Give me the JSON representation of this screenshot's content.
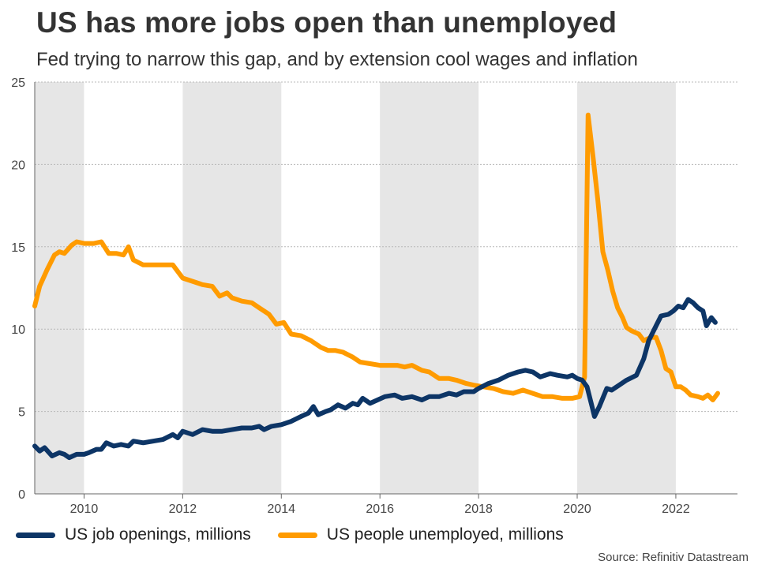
{
  "header": {
    "title": "US has more jobs open than unemployed",
    "subtitle": "Fed trying to narrow this gap, and by extension cool wages and inflation"
  },
  "legend": {
    "openings": "US job openings, millions",
    "unemployed": "US people unemployed, millions"
  },
  "source": "Source: Refinitiv Datastream",
  "colors": {
    "openings": "#0d3566",
    "unemployed": "#ff9b00",
    "shade": "#e6e6e6",
    "grid": "#b8b8b8"
  },
  "chart_data": {
    "type": "line",
    "title": "US has more jobs open than unemployed",
    "xlabel": "",
    "ylabel": "",
    "xlim": [
      2009.0,
      2023.25
    ],
    "ylim": [
      0,
      25
    ],
    "yticks": [
      0,
      5,
      10,
      15,
      20,
      25
    ],
    "xticks": [
      2010,
      2012,
      2014,
      2016,
      2018,
      2020,
      2022
    ],
    "xtick_labels": [
      "2010",
      "2012",
      "2014",
      "2016",
      "2018",
      "2020",
      "2022"
    ],
    "grid": true,
    "shaded_ranges": [
      [
        2009.0,
        2010.0
      ],
      [
        2012.0,
        2014.0
      ],
      [
        2016.0,
        2018.0
      ],
      [
        2020.0,
        2022.0
      ]
    ],
    "series": [
      {
        "name": "US job openings, millions",
        "points": [
          [
            2009.0,
            2.9
          ],
          [
            2009.1,
            2.6
          ],
          [
            2009.2,
            2.8
          ],
          [
            2009.35,
            2.3
          ],
          [
            2009.5,
            2.5
          ],
          [
            2009.6,
            2.4
          ],
          [
            2009.7,
            2.2
          ],
          [
            2009.85,
            2.4
          ],
          [
            2010.0,
            2.4
          ],
          [
            2010.1,
            2.5
          ],
          [
            2010.25,
            2.7
          ],
          [
            2010.35,
            2.7
          ],
          [
            2010.45,
            3.1
          ],
          [
            2010.6,
            2.9
          ],
          [
            2010.75,
            3.0
          ],
          [
            2010.9,
            2.9
          ],
          [
            2011.0,
            3.2
          ],
          [
            2011.2,
            3.1
          ],
          [
            2011.4,
            3.2
          ],
          [
            2011.6,
            3.3
          ],
          [
            2011.8,
            3.6
          ],
          [
            2011.9,
            3.4
          ],
          [
            2012.0,
            3.8
          ],
          [
            2012.2,
            3.6
          ],
          [
            2012.4,
            3.9
          ],
          [
            2012.6,
            3.8
          ],
          [
            2012.8,
            3.8
          ],
          [
            2013.0,
            3.9
          ],
          [
            2013.2,
            4.0
          ],
          [
            2013.4,
            4.0
          ],
          [
            2013.55,
            4.1
          ],
          [
            2013.65,
            3.9
          ],
          [
            2013.8,
            4.1
          ],
          [
            2014.0,
            4.2
          ],
          [
            2014.2,
            4.4
          ],
          [
            2014.4,
            4.7
          ],
          [
            2014.55,
            4.9
          ],
          [
            2014.65,
            5.3
          ],
          [
            2014.75,
            4.8
          ],
          [
            2014.9,
            5.0
          ],
          [
            2015.0,
            5.1
          ],
          [
            2015.15,
            5.4
          ],
          [
            2015.3,
            5.2
          ],
          [
            2015.45,
            5.5
          ],
          [
            2015.55,
            5.4
          ],
          [
            2015.65,
            5.8
          ],
          [
            2015.8,
            5.5
          ],
          [
            2015.95,
            5.7
          ],
          [
            2016.1,
            5.9
          ],
          [
            2016.3,
            6.0
          ],
          [
            2016.45,
            5.8
          ],
          [
            2016.65,
            5.9
          ],
          [
            2016.85,
            5.7
          ],
          [
            2017.0,
            5.9
          ],
          [
            2017.2,
            5.9
          ],
          [
            2017.4,
            6.1
          ],
          [
            2017.55,
            6.0
          ],
          [
            2017.7,
            6.2
          ],
          [
            2017.9,
            6.2
          ],
          [
            2018.0,
            6.4
          ],
          [
            2018.2,
            6.7
          ],
          [
            2018.4,
            6.9
          ],
          [
            2018.6,
            7.2
          ],
          [
            2018.8,
            7.4
          ],
          [
            2018.95,
            7.5
          ],
          [
            2019.1,
            7.4
          ],
          [
            2019.25,
            7.1
          ],
          [
            2019.45,
            7.3
          ],
          [
            2019.6,
            7.2
          ],
          [
            2019.8,
            7.1
          ],
          [
            2019.9,
            7.2
          ],
          [
            2020.0,
            7.0
          ],
          [
            2020.1,
            6.9
          ],
          [
            2020.2,
            6.5
          ],
          [
            2020.3,
            5.3
          ],
          [
            2020.35,
            4.7
          ],
          [
            2020.45,
            5.3
          ],
          [
            2020.6,
            6.4
          ],
          [
            2020.7,
            6.3
          ],
          [
            2020.85,
            6.6
          ],
          [
            2021.0,
            6.9
          ],
          [
            2021.2,
            7.2
          ],
          [
            2021.35,
            8.2
          ],
          [
            2021.45,
            9.3
          ],
          [
            2021.6,
            10.2
          ],
          [
            2021.7,
            10.8
          ],
          [
            2021.85,
            10.9
          ],
          [
            2021.95,
            11.1
          ],
          [
            2022.05,
            11.4
          ],
          [
            2022.15,
            11.3
          ],
          [
            2022.25,
            11.8
          ],
          [
            2022.35,
            11.6
          ],
          [
            2022.45,
            11.3
          ],
          [
            2022.55,
            11.1
          ],
          [
            2022.62,
            10.2
          ],
          [
            2022.72,
            10.7
          ],
          [
            2022.8,
            10.4
          ]
        ]
      },
      {
        "name": "US people unemployed, millions",
        "points": [
          [
            2009.0,
            11.4
          ],
          [
            2009.1,
            12.6
          ],
          [
            2009.25,
            13.6
          ],
          [
            2009.4,
            14.5
          ],
          [
            2009.5,
            14.7
          ],
          [
            2009.6,
            14.6
          ],
          [
            2009.75,
            15.1
          ],
          [
            2009.85,
            15.3
          ],
          [
            2010.0,
            15.2
          ],
          [
            2010.2,
            15.2
          ],
          [
            2010.35,
            15.3
          ],
          [
            2010.5,
            14.6
          ],
          [
            2010.65,
            14.6
          ],
          [
            2010.8,
            14.5
          ],
          [
            2010.9,
            15.0
          ],
          [
            2011.0,
            14.2
          ],
          [
            2011.2,
            13.9
          ],
          [
            2011.4,
            13.9
          ],
          [
            2011.6,
            13.9
          ],
          [
            2011.8,
            13.9
          ],
          [
            2012.0,
            13.1
          ],
          [
            2012.2,
            12.9
          ],
          [
            2012.4,
            12.7
          ],
          [
            2012.6,
            12.6
          ],
          [
            2012.75,
            12.0
          ],
          [
            2012.9,
            12.2
          ],
          [
            2013.0,
            11.9
          ],
          [
            2013.2,
            11.7
          ],
          [
            2013.4,
            11.6
          ],
          [
            2013.55,
            11.3
          ],
          [
            2013.75,
            10.9
          ],
          [
            2013.9,
            10.3
          ],
          [
            2014.05,
            10.4
          ],
          [
            2014.2,
            9.7
          ],
          [
            2014.4,
            9.6
          ],
          [
            2014.6,
            9.3
          ],
          [
            2014.8,
            8.9
          ],
          [
            2014.95,
            8.7
          ],
          [
            2015.1,
            8.7
          ],
          [
            2015.25,
            8.6
          ],
          [
            2015.45,
            8.3
          ],
          [
            2015.6,
            8.0
          ],
          [
            2015.8,
            7.9
          ],
          [
            2016.0,
            7.8
          ],
          [
            2016.2,
            7.8
          ],
          [
            2016.35,
            7.8
          ],
          [
            2016.5,
            7.7
          ],
          [
            2016.65,
            7.8
          ],
          [
            2016.85,
            7.5
          ],
          [
            2017.0,
            7.4
          ],
          [
            2017.2,
            7.0
          ],
          [
            2017.4,
            7.0
          ],
          [
            2017.55,
            6.9
          ],
          [
            2017.75,
            6.7
          ],
          [
            2017.9,
            6.6
          ],
          [
            2018.1,
            6.5
          ],
          [
            2018.3,
            6.4
          ],
          [
            2018.5,
            6.2
          ],
          [
            2018.7,
            6.1
          ],
          [
            2018.9,
            6.3
          ],
          [
            2019.1,
            6.1
          ],
          [
            2019.3,
            5.9
          ],
          [
            2019.5,
            5.9
          ],
          [
            2019.7,
            5.8
          ],
          [
            2019.9,
            5.8
          ],
          [
            2020.05,
            5.9
          ],
          [
            2020.15,
            7.1
          ],
          [
            2020.22,
            23.0
          ],
          [
            2020.32,
            20.5
          ],
          [
            2020.42,
            17.8
          ],
          [
            2020.52,
            14.7
          ],
          [
            2020.62,
            13.6
          ],
          [
            2020.72,
            12.3
          ],
          [
            2020.82,
            11.3
          ],
          [
            2020.92,
            10.7
          ],
          [
            2021.0,
            10.1
          ],
          [
            2021.1,
            9.9
          ],
          [
            2021.25,
            9.7
          ],
          [
            2021.35,
            9.3
          ],
          [
            2021.5,
            9.5
          ],
          [
            2021.6,
            9.5
          ],
          [
            2021.7,
            8.7
          ],
          [
            2021.8,
            7.6
          ],
          [
            2021.9,
            7.4
          ],
          [
            2022.0,
            6.5
          ],
          [
            2022.1,
            6.5
          ],
          [
            2022.2,
            6.3
          ],
          [
            2022.3,
            6.0
          ],
          [
            2022.45,
            5.9
          ],
          [
            2022.55,
            5.8
          ],
          [
            2022.65,
            6.0
          ],
          [
            2022.75,
            5.7
          ],
          [
            2022.85,
            6.1
          ]
        ]
      }
    ]
  }
}
